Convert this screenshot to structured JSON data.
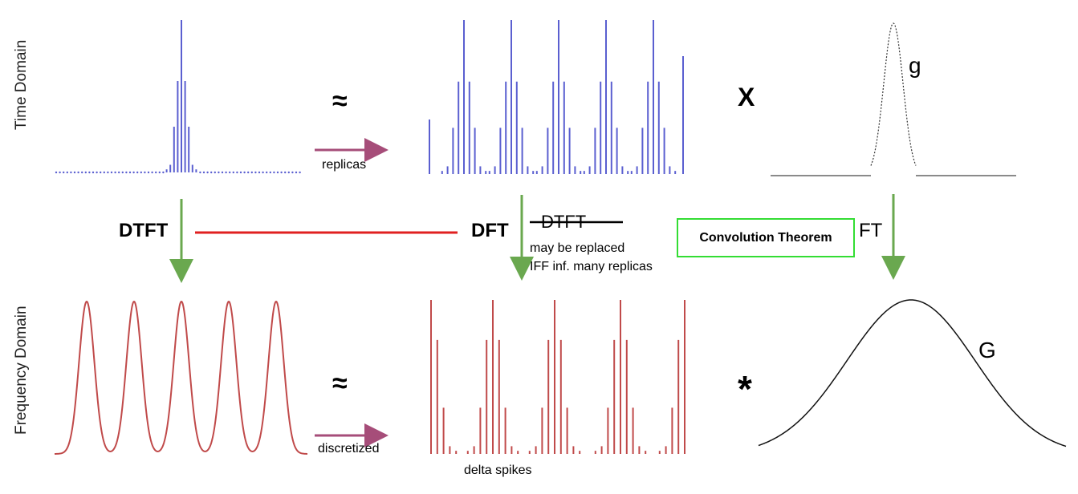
{
  "axes": {
    "time_label": "Time Domain",
    "frequency_label": "Frequency Domain"
  },
  "transforms": {
    "dtft": "DTFT",
    "dft": "DFT",
    "dtft_struck": "DTFT",
    "ft": "FT",
    "note_line1": "may be replaced",
    "note_line2": "IFF inf. many replicas",
    "convolution_theorem": "Convolution Theorem"
  },
  "operators": {
    "approx_top": "≈",
    "approx_bottom": "≈",
    "multiply": "X",
    "convolve": "*"
  },
  "arrows": {
    "replicas": "replicas",
    "discretized": "discretized"
  },
  "captions": {
    "delta_spikes": "delta spikes",
    "g_time": "g",
    "G_freq": "G"
  },
  "colors": {
    "time_signal": "#5a5fd0",
    "freq_signal": "#c04a4a",
    "green_arrow": "#6aa84f",
    "purple_arrow": "#a64d79",
    "red_link": "#e02020",
    "box_border": "#33dd33"
  },
  "chart_data": [
    {
      "type": "stem",
      "title": "Time domain: finite sequence",
      "x": [
        -4,
        -3,
        -2,
        -1,
        0,
        1,
        2,
        3,
        4
      ],
      "values": [
        0.02,
        0.05,
        0.3,
        0.6,
        1.0,
        0.6,
        0.3,
        0.05,
        0.02
      ],
      "ylim": [
        0,
        1
      ]
    },
    {
      "type": "stem",
      "title": "Time domain: periodic replicas",
      "period_count": 5,
      "x": [
        -4,
        -3,
        -2,
        -1,
        0,
        1,
        2,
        3,
        4
      ],
      "values": [
        0.02,
        0.05,
        0.3,
        0.6,
        1.0,
        0.6,
        0.3,
        0.05,
        0.02
      ],
      "ylim": [
        0,
        1
      ]
    },
    {
      "type": "line",
      "title": "Time domain window g",
      "shape": "narrow gaussian pulse"
    },
    {
      "type": "line",
      "title": "Frequency domain: continuous periodic spectrum",
      "periods": 5
    },
    {
      "type": "stem",
      "title": "Frequency domain: discretized spectrum (delta spikes)",
      "periods": 4
    },
    {
      "type": "line",
      "title": "Frequency domain G",
      "shape": "wide gaussian"
    }
  ]
}
